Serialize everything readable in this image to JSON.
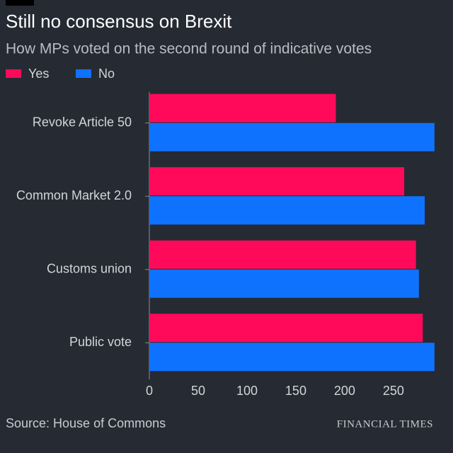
{
  "chart_data": {
    "type": "hbar",
    "title": "Still no consensus on Brexit",
    "subtitle": "How MPs voted on the second round of indicative votes",
    "source": "Source: House of Commons",
    "categories": [
      "Revoke Article 50",
      "Common Market 2.0",
      "Customs union",
      "Public vote"
    ],
    "series": [
      {
        "name": "Yes",
        "color": "#ff0a5a",
        "values": [
          191,
          261,
          273,
          280
        ]
      },
      {
        "name": "No",
        "color": "#0f72ff",
        "values": [
          292,
          282,
          276,
          292
        ]
      }
    ],
    "xlim": [
      0,
      295
    ],
    "xticks": [
      0,
      50,
      100,
      150,
      200,
      250
    ],
    "legend": "top-left"
  },
  "logo": "FINANCIAL TIMES"
}
